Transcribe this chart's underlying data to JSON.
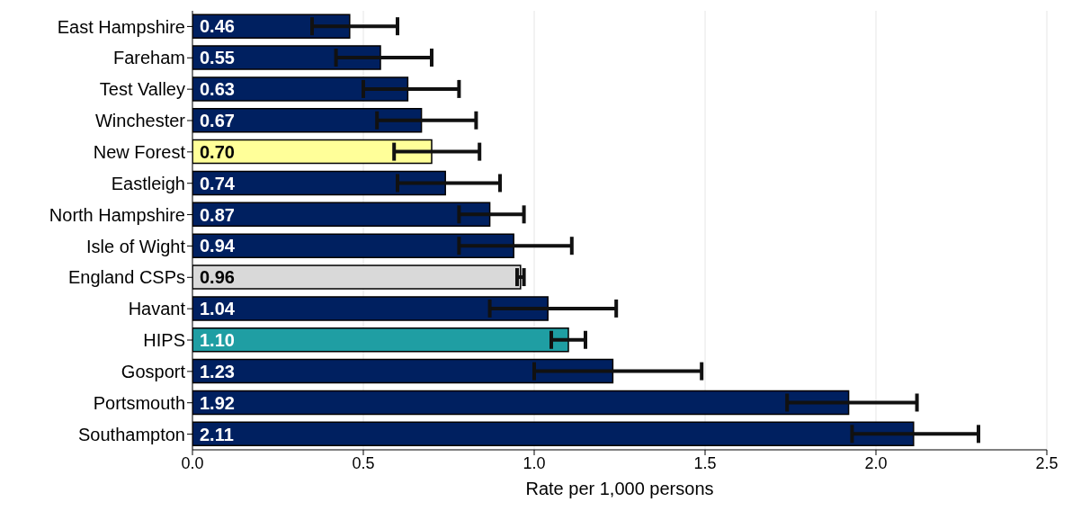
{
  "chart_data": {
    "type": "bar",
    "orientation": "horizontal",
    "xlabel": "Rate per 1,000 persons",
    "categories": [
      "East Hampshire",
      "Fareham",
      "Test Valley",
      "Winchester",
      "New Forest",
      "Eastleigh",
      "North Hampshire",
      "Isle of Wight",
      "England CSPs",
      "Havant",
      "HIPS",
      "Gosport",
      "Portsmouth",
      "Southampton"
    ],
    "values": [
      0.46,
      0.55,
      0.63,
      0.67,
      0.7,
      0.74,
      0.87,
      0.94,
      0.96,
      1.04,
      1.1,
      1.23,
      1.92,
      2.11
    ],
    "value_labels": [
      "0.46",
      "0.55",
      "0.63",
      "0.67",
      "0.70",
      "0.74",
      "0.87",
      "0.94",
      "0.96",
      "1.04",
      "1.10",
      "1.23",
      "1.92",
      "2.11"
    ],
    "colors": [
      "#002060",
      "#002060",
      "#002060",
      "#002060",
      "#ffff99",
      "#002060",
      "#002060",
      "#002060",
      "#d9d9d9",
      "#002060",
      "#1f9ea3",
      "#002060",
      "#002060",
      "#002060"
    ],
    "errors": [
      [
        0.35,
        0.6
      ],
      [
        0.42,
        0.7
      ],
      [
        0.5,
        0.78
      ],
      [
        0.54,
        0.83
      ],
      [
        0.59,
        0.84
      ],
      [
        0.6,
        0.9
      ],
      [
        0.78,
        0.97
      ],
      [
        0.78,
        1.11
      ],
      [
        0.95,
        0.97
      ],
      [
        0.87,
        1.24
      ],
      [
        1.05,
        1.15
      ],
      [
        1.0,
        1.49
      ],
      [
        1.74,
        2.12
      ],
      [
        1.93,
        2.3
      ]
    ],
    "xlim": [
      0,
      2.5
    ],
    "xticks": [
      {
        "value": 0,
        "label": "0.0"
      },
      {
        "value": 0.5,
        "label": "0.5"
      },
      {
        "value": 1,
        "label": "1.0"
      },
      {
        "value": 1.5,
        "label": "1.5"
      },
      {
        "value": 2,
        "label": "2.0"
      },
      {
        "value": 2.5,
        "label": "2.5"
      }
    ],
    "grid": "x",
    "legend": false
  }
}
